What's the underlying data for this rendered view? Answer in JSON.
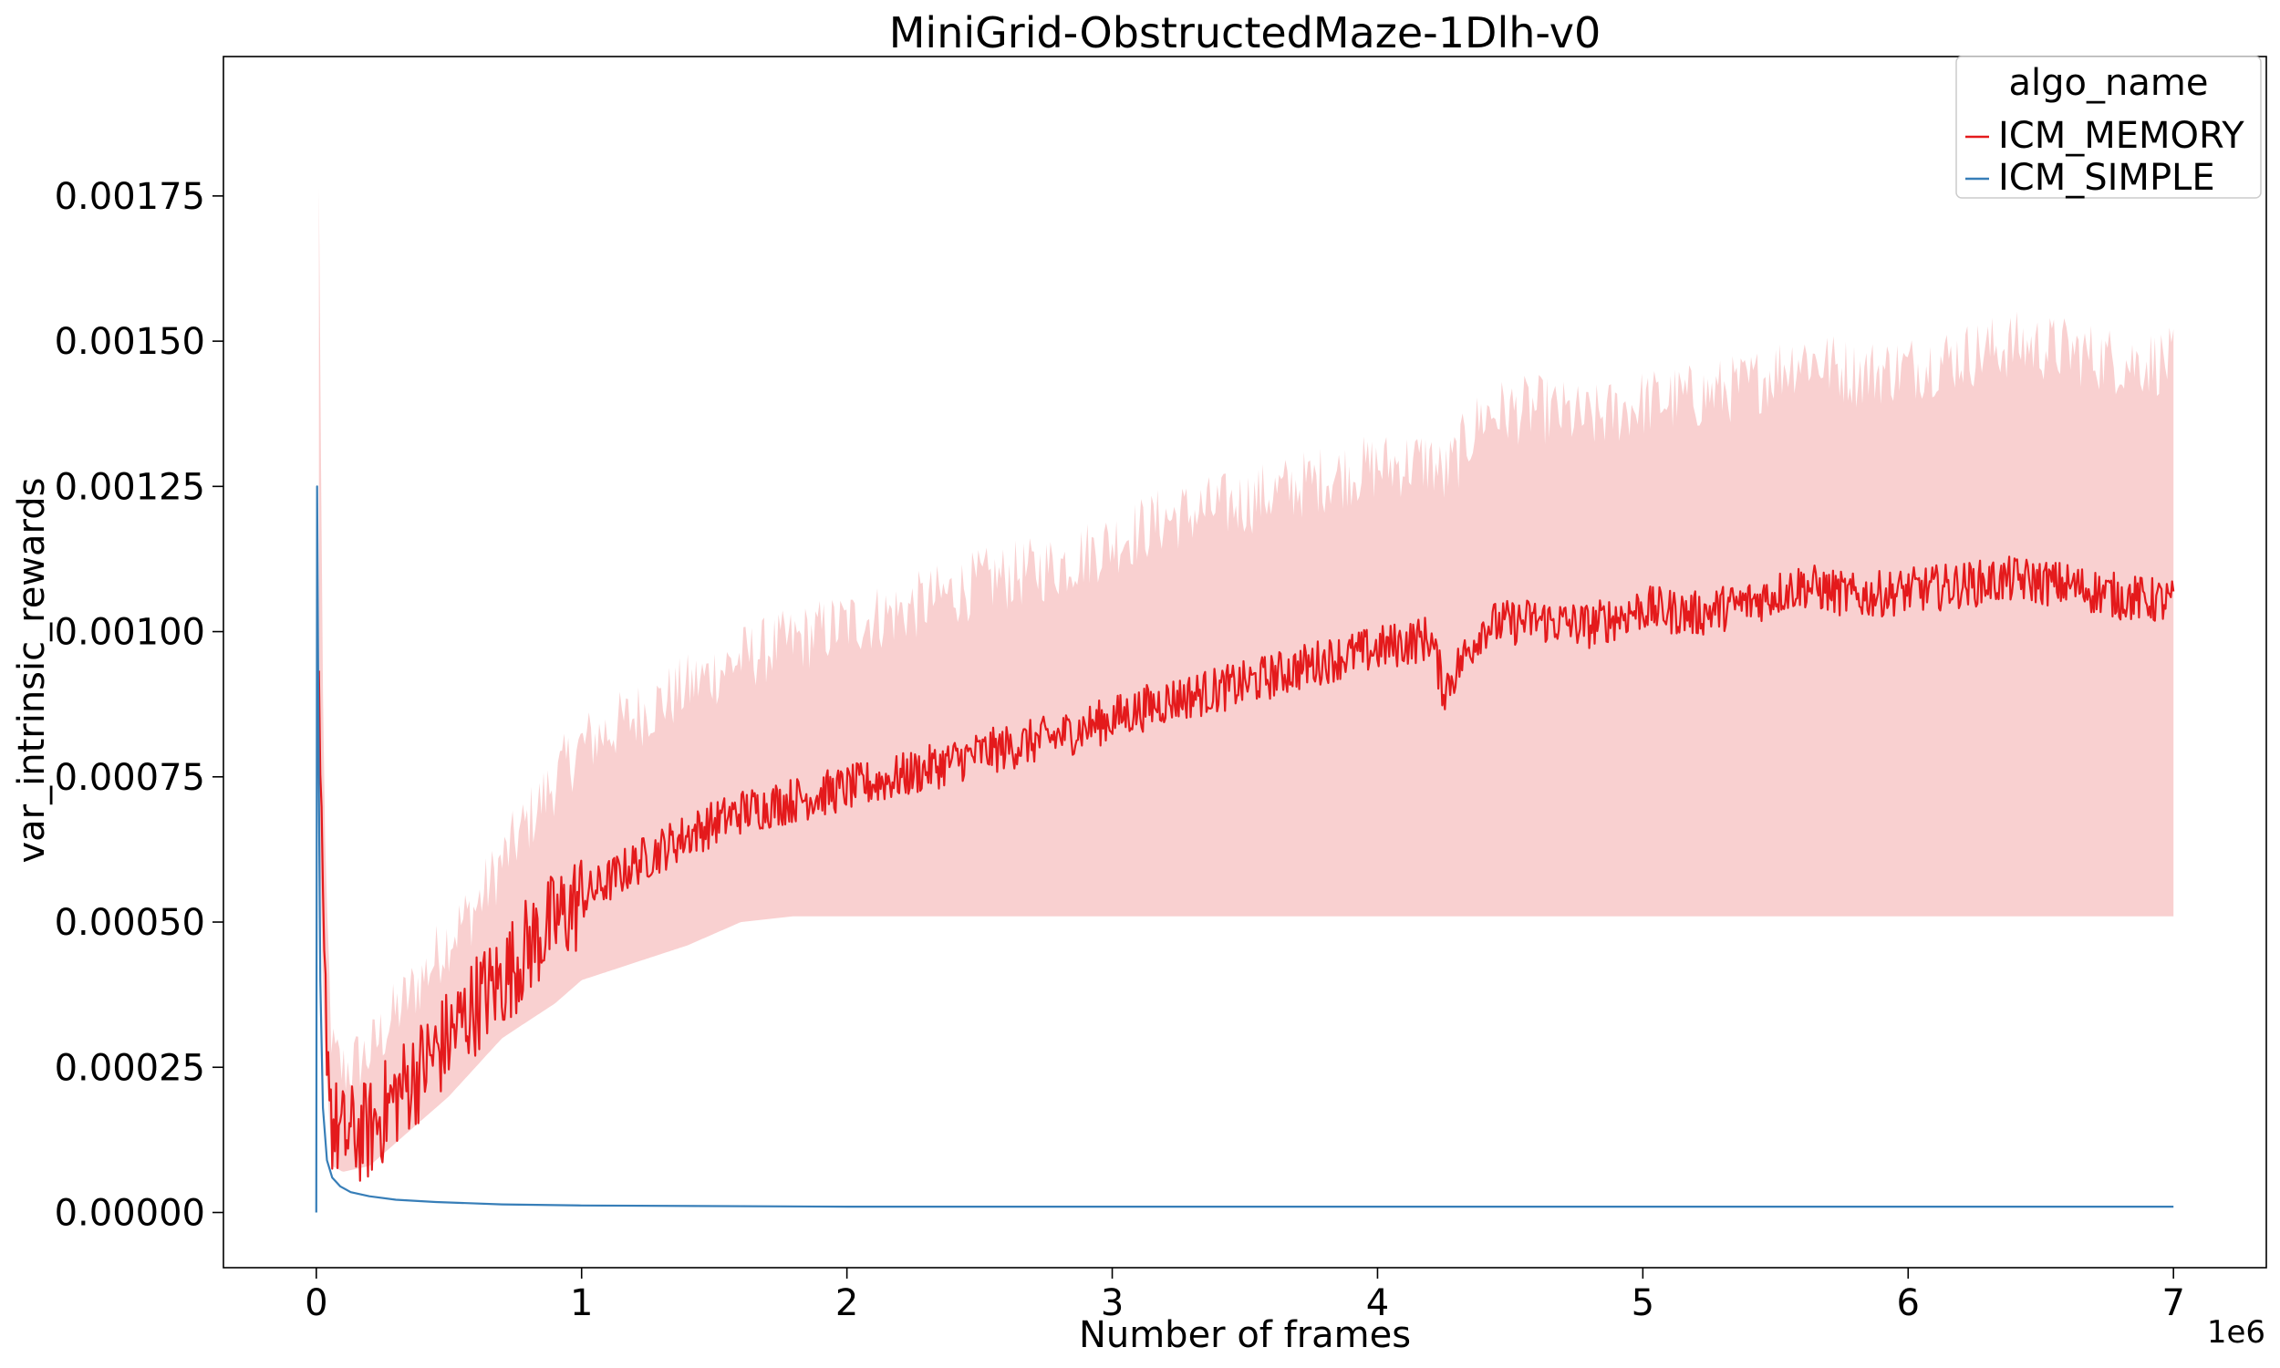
{
  "chart_data": {
    "type": "line",
    "title": "MiniGrid-ObstructedMaze-1Dlh-v0",
    "xlabel": "Number of frames",
    "ylabel": "var_intrinsic_rewards",
    "x_offset_label": "1e6",
    "x_scale": 1000000,
    "xlim": [
      -350000,
      7350000
    ],
    "ylim": [
      -9.5e-05,
      0.00199
    ],
    "xticks": [
      0,
      1000000,
      2000000,
      3000000,
      4000000,
      5000000,
      6000000,
      7000000
    ],
    "xtick_labels": [
      "0",
      "1",
      "2",
      "3",
      "4",
      "5",
      "6",
      "7"
    ],
    "yticks": [
      0.0,
      0.00025,
      0.0005,
      0.00075,
      0.001,
      0.00125,
      0.0015,
      0.00175
    ],
    "ytick_labels": [
      "0.00000",
      "0.00025",
      "0.00050",
      "0.00075",
      "0.00100",
      "0.00125",
      "0.00150",
      "0.00175"
    ],
    "grid": false,
    "legend": {
      "title": "algo_name",
      "position": "top-right"
    },
    "series": [
      {
        "name": "ICM_MEMORY",
        "color": "#e41a1c",
        "band_color": "#f4a9aa",
        "x": [
          10000,
          30000,
          60000,
          100000,
          200000,
          300000,
          400000,
          500000,
          600000,
          700000,
          800000,
          900000,
          1000000,
          1200000,
          1400000,
          1600000,
          1800000,
          2000000,
          2200000,
          2500000,
          2800000,
          3000000,
          3200000,
          3500000,
          3800000,
          4000000,
          4200000,
          4250000,
          4400000,
          4600000,
          4800000,
          5000000,
          5200000,
          5400000,
          5600000,
          5800000,
          6000000,
          6200000,
          6400000,
          6600000,
          6800000,
          7000000
        ],
        "y": [
          0.00085,
          0.0004,
          0.00015,
          0.00013,
          0.00014,
          0.0002,
          0.00025,
          0.0003,
          0.00036,
          0.0004,
          0.00046,
          0.0005,
          0.00054,
          0.0006,
          0.00065,
          0.00069,
          0.00071,
          0.00073,
          0.00075,
          0.00079,
          0.00082,
          0.00085,
          0.00088,
          0.00091,
          0.00095,
          0.00097,
          0.00099,
          0.0009,
          0.00101,
          0.00102,
          0.00101,
          0.00104,
          0.00103,
          0.00105,
          0.00108,
          0.00106,
          0.00107,
          0.00108,
          0.00109,
          0.00108,
          0.00106,
          0.00105
        ],
        "lower": [
          0.0007,
          0.0003,
          8e-05,
          7e-05,
          8e-05,
          0.00012,
          0.00016,
          0.0002,
          0.00025,
          0.0003,
          0.00033,
          0.00036,
          0.0004,
          0.00043,
          0.00046,
          0.0005,
          0.00051,
          0.00051,
          0.00051,
          0.00051,
          0.00051,
          0.00051,
          0.00051,
          0.00051,
          0.00051,
          0.00051,
          0.00051,
          0.00051,
          0.00051,
          0.00051,
          0.00051,
          0.00051,
          0.00051,
          0.00051,
          0.00051,
          0.00051,
          0.00051,
          0.00051,
          0.00051,
          0.00051,
          0.00051,
          0.00051
        ],
        "upper": [
          0.00172,
          0.0006,
          0.00025,
          0.00022,
          0.00025,
          0.00032,
          0.00038,
          0.00045,
          0.0005,
          0.00058,
          0.00065,
          0.00072,
          0.00078,
          0.00083,
          0.00088,
          0.00093,
          0.00096,
          0.00099,
          0.00101,
          0.00106,
          0.00109,
          0.00113,
          0.00117,
          0.0012,
          0.00124,
          0.00126,
          0.00127,
          0.00124,
          0.00135,
          0.00136,
          0.00134,
          0.00137,
          0.00138,
          0.0014,
          0.00145,
          0.00142,
          0.00143,
          0.00145,
          0.00147,
          0.00146,
          0.00144,
          0.00144
        ]
      },
      {
        "name": "ICM_SIMPLE",
        "color": "#377eb8",
        "band_color": "#a6c8e6",
        "x": [
          0,
          3000,
          8000,
          15000,
          25000,
          40000,
          60000,
          90000,
          130000,
          200000,
          300000,
          450000,
          700000,
          1000000,
          2000000,
          3000000,
          4000000,
          5000000,
          6000000,
          7000000
        ],
        "y": [
          0.0,
          0.00125,
          0.00085,
          0.0004,
          0.00018,
          9e-05,
          6e-05,
          4.5e-05,
          3.5e-05,
          2.8e-05,
          2.2e-05,
          1.8e-05,
          1.4e-05,
          1.2e-05,
          1e-05,
          1e-05,
          1e-05,
          1e-05,
          1e-05,
          1e-05
        ]
      }
    ]
  }
}
